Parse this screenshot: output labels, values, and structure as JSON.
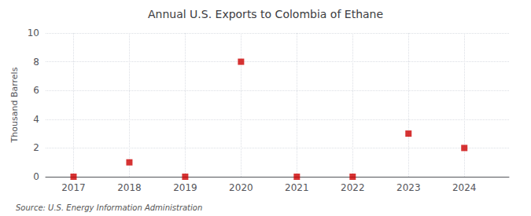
{
  "chart_data": {
    "type": "scatter",
    "title": "Annual U.S. Exports to Colombia of Ethane",
    "ylabel": "Thousand Barrels",
    "source": "Source: U.S. Energy Information Administration",
    "x": [
      2017,
      2018,
      2019,
      2020,
      2021,
      2022,
      2023,
      2024
    ],
    "values": [
      0,
      1,
      0,
      8,
      0,
      0,
      3,
      2
    ],
    "color": "#cc0000",
    "marker": "square",
    "xlim": [
      2016.5,
      2024.8
    ],
    "xticks": [
      2017,
      2018,
      2019,
      2020,
      2021,
      2022,
      2023,
      2024
    ],
    "ylim": [
      0,
      10
    ],
    "yticks": [
      0,
      2,
      4,
      6,
      8,
      10
    ],
    "grid": true
  }
}
